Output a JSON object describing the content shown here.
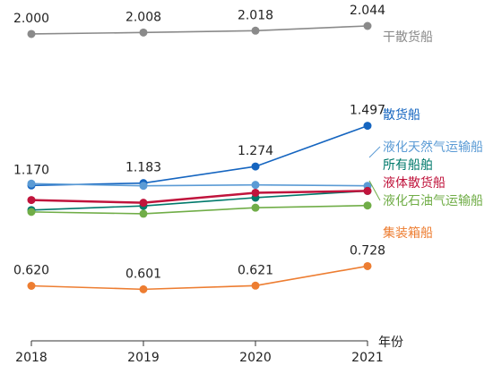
{
  "colors": {
    "dry_bulk_ship": "#8a8a8a",
    "bulk_carrier": "#1565c0",
    "lng_carrier": "#5b9bd5",
    "all_ships": "#00796b",
    "liquid_bulk_ship": "#c0143c",
    "lpg_carrier": "#70ad47",
    "container_ship": "#ed7d31",
    "axis": "#333333",
    "label_text": "#222222"
  },
  "chart_data": {
    "type": "line",
    "x": [
      2018,
      2019,
      2020,
      2021
    ],
    "xlabel": "年份",
    "tick_labels": [
      "2018",
      "2019",
      "2020",
      "2021"
    ],
    "series": [
      {
        "name": "干散货船",
        "values": [
          2.0,
          2.008,
          2.018,
          2.044
        ],
        "labels": [
          "2.000",
          "2.008",
          "2.018",
          "2.044"
        ],
        "color_key": "dry_bulk_ship"
      },
      {
        "name": "散货船",
        "values": [
          1.17,
          1.183,
          1.274,
          1.497
        ],
        "labels": [
          "1.170",
          "1.183",
          "1.274",
          "1.497"
        ],
        "color_key": "bulk_carrier"
      },
      {
        "name": "液化天然气运输船",
        "values": [
          1.18,
          1.168,
          1.173,
          1.168
        ],
        "labels": [
          "",
          "",
          "",
          ""
        ],
        "color_key": "lng_carrier"
      },
      {
        "name": "所有船舶",
        "values": [
          1.035,
          1.058,
          1.103,
          1.14
        ],
        "labels": [
          "",
          "",
          "",
          ""
        ],
        "color_key": "all_ships"
      },
      {
        "name": "液体散货船",
        "values": [
          1.09,
          1.075,
          1.13,
          1.14
        ],
        "labels": [
          "",
          "",
          "",
          ""
        ],
        "color_key": "liquid_bulk_ship"
      },
      {
        "name": "液化石油气运输船",
        "values": [
          1.025,
          1.015,
          1.048,
          1.06
        ],
        "labels": [
          "",
          "",
          "",
          ""
        ],
        "color_key": "lpg_carrier"
      },
      {
        "name": "集装箱船",
        "values": [
          0.62,
          0.601,
          0.621,
          0.728
        ],
        "labels": [
          "0.620",
          "0.601",
          "0.621",
          "0.728"
        ],
        "color_key": "container_ship"
      }
    ]
  }
}
